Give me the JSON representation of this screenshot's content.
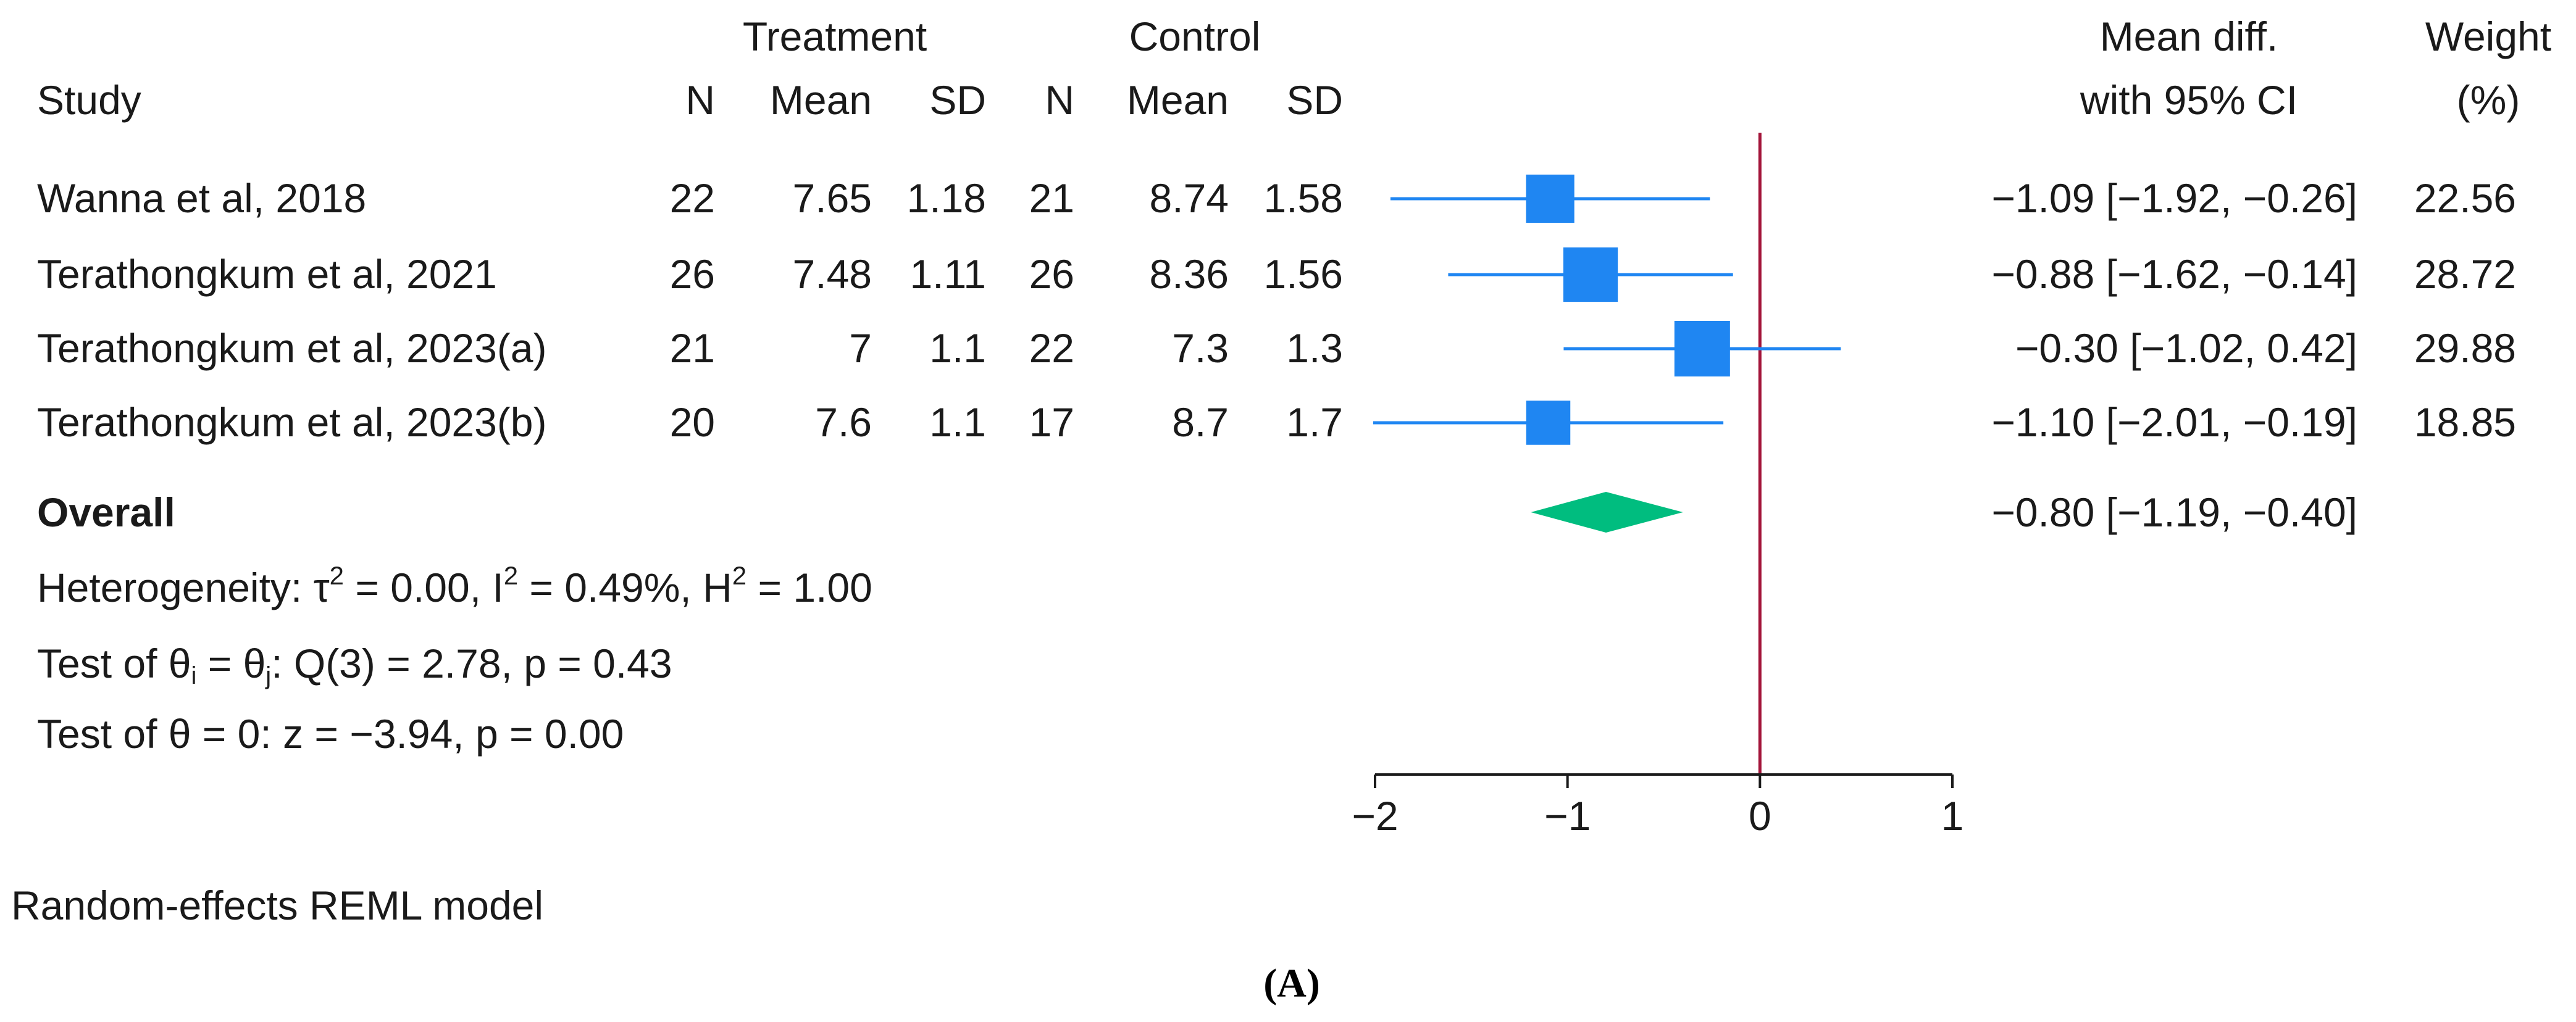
{
  "chart_data": {
    "type": "forest",
    "column_groups": {
      "treatment": "Treatment",
      "control": "Control"
    },
    "columns": {
      "study": "Study",
      "n_t": "N",
      "mean_t": "Mean",
      "sd_t": "SD",
      "n_c": "N",
      "mean_c": "Mean",
      "sd_c": "SD",
      "effect_line1": "Mean diff.",
      "effect_line2": "with 95% CI",
      "weight_line1": "Weight",
      "weight_line2": "(%)"
    },
    "studies": [
      {
        "name": "Wanna et al, 2018",
        "n_t": "22",
        "mean_t": "7.65",
        "sd_t": "1.18",
        "n_c": "21",
        "mean_c": "8.74",
        "sd_c": "1.58",
        "est": -1.09,
        "lo": -1.92,
        "hi": -0.26,
        "ci_text": "−1.09 [−1.92, −0.26]",
        "weight": 22.56,
        "weight_text": "22.56"
      },
      {
        "name": "Terathongkum et al, 2021",
        "n_t": "26",
        "mean_t": "7.48",
        "sd_t": "1.11",
        "n_c": "26",
        "mean_c": "8.36",
        "sd_c": "1.56",
        "est": -0.88,
        "lo": -1.62,
        "hi": -0.14,
        "ci_text": "−0.88 [−1.62, −0.14]",
        "weight": 28.72,
        "weight_text": "28.72"
      },
      {
        "name": "Terathongkum et al, 2023(a)",
        "n_t": "21",
        "mean_t": "7",
        "sd_t": "1.1",
        "n_c": "22",
        "mean_c": "7.3",
        "sd_c": "1.3",
        "est": -0.3,
        "lo": -1.02,
        "hi": 0.42,
        "ci_text": "−0.30 [−1.02,   0.42]",
        "weight": 29.88,
        "weight_text": "29.88"
      },
      {
        "name": "Terathongkum et al, 2023(b)",
        "n_t": "20",
        "mean_t": "7.6",
        "sd_t": "1.1",
        "n_c": "17",
        "mean_c": "8.7",
        "sd_c": "1.7",
        "est": -1.1,
        "lo": -2.01,
        "hi": -0.19,
        "ci_text": "−1.10 [−2.01, −0.19]",
        "weight": 18.85,
        "weight_text": "18.85"
      }
    ],
    "overall": {
      "label": "Overall",
      "est": -0.8,
      "lo": -1.19,
      "hi": -0.4,
      "ci_text": "−0.80 [−1.19, −0.40]"
    },
    "heterogeneity": {
      "prefix": "Heterogeneity: τ",
      "tau2": " = 0.00, I",
      "i2": " = 0.49%, H",
      "h2": " = 1.00",
      "sup": "2"
    },
    "test_homogeneity": {
      "a": "Test of θ",
      "sub_i": "i",
      "b": " = θ",
      "sub_j": "j",
      "c": ": Q(3) = 2.78, p = 0.43"
    },
    "test_effect": "Test of θ = 0: z = −3.94, p = 0.00",
    "x_axis": {
      "ticks": [
        -2,
        -1,
        0,
        1
      ],
      "tick_labels": [
        "−2",
        "−1",
        "0",
        "1"
      ],
      "xlim": [
        -2,
        1
      ],
      "ref_value": 0
    },
    "model_note": "Random-effects REML model",
    "panel_label": "(A)",
    "colors": {
      "marker": "#1f86f2",
      "diamond": "#00bd7f",
      "refline": "#a3153a",
      "axis": "#1a1a1a"
    }
  }
}
